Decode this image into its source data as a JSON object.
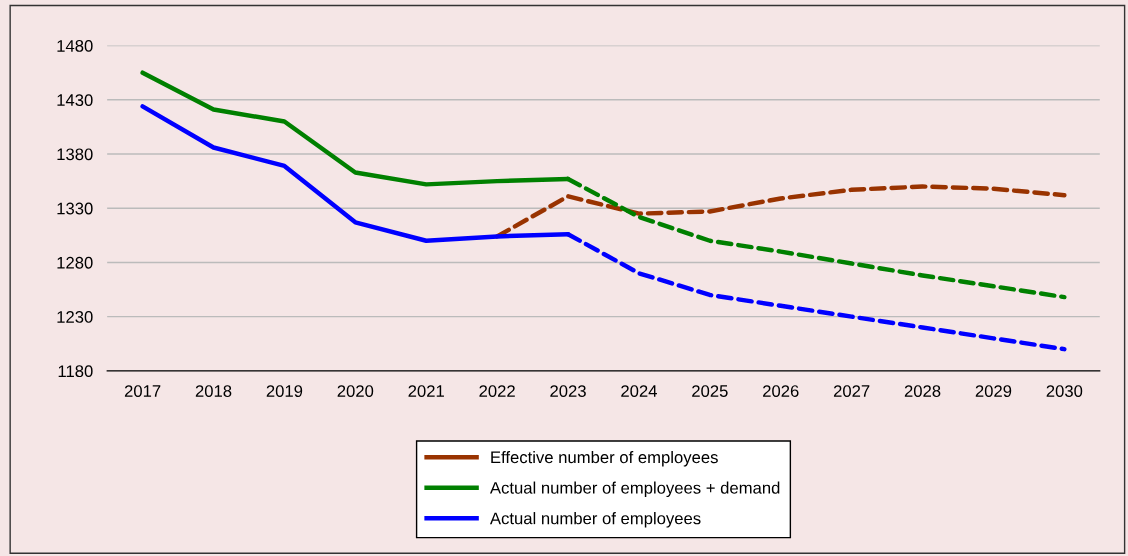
{
  "chart_data": {
    "type": "line",
    "categories": [
      "2017",
      "2018",
      "2019",
      "2020",
      "2021",
      "2022",
      "2023",
      "2024",
      "2025",
      "2026",
      "2027",
      "2028",
      "2029",
      "2030"
    ],
    "ylim": [
      1180,
      1480
    ],
    "yticks": [
      1180,
      1230,
      1280,
      1330,
      1380,
      1430,
      1480
    ],
    "grid": "y",
    "legend": "bottom",
    "marker": "none",
    "series": [
      {
        "name": "Effective number of employees",
        "color": "#993300",
        "line_style": "dashed",
        "values": [
          null,
          null,
          null,
          null,
          null,
          1304,
          1341,
          1325,
          1327,
          1339,
          1347,
          1350,
          1348,
          1342
        ]
      },
      {
        "name": "Actual number of employees + demand",
        "color": "#008000",
        "line_style": "solid",
        "values": [
          1455,
          1421,
          1410,
          1363,
          1352,
          1355,
          1357,
          null,
          null,
          null,
          null,
          null,
          null,
          null
        ]
      },
      {
        "name": "Actual number of employees",
        "color": "#0000ff",
        "line_style": "solid",
        "values": [
          1424,
          1386,
          1369,
          1317,
          1300,
          1304,
          1306,
          null,
          null,
          null,
          null,
          null,
          null,
          null
        ]
      },
      {
        "color": "#008000",
        "line_style": "dashed",
        "values": [
          null,
          null,
          null,
          null,
          null,
          null,
          1357,
          1322,
          1300,
          1290,
          1279,
          1268,
          1258,
          1248
        ]
      },
      {
        "color": "#0000ff",
        "line_style": "dashed",
        "values": [
          null,
          null,
          null,
          null,
          null,
          null,
          1306,
          1270,
          1250,
          1240,
          1230,
          1220,
          1210,
          1200
        ]
      }
    ]
  }
}
